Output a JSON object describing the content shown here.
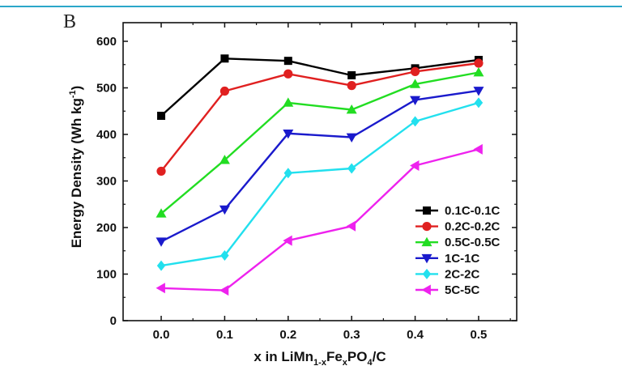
{
  "panel_label": "B",
  "chart_data": {
    "type": "line",
    "title": "",
    "xlabel_parts": {
      "prefix": "x in LiMn",
      "sub1": "1-x",
      "mid1": "Fe",
      "sub2": "x",
      "mid2": "PO",
      "sub3": "4",
      "suffix": "/C"
    },
    "ylabel_parts": {
      "main": "Energy Density  (Wh kg",
      "sup": "-1",
      "end": ")"
    },
    "x": [
      0.0,
      0.1,
      0.2,
      0.3,
      0.4,
      0.5
    ],
    "x_tick_labels": [
      "0.0",
      "0.1",
      "0.2",
      "0.3",
      "0.4",
      "0.5"
    ],
    "y_ticks": [
      0,
      100,
      200,
      300,
      400,
      500,
      600
    ],
    "xlim": [
      -0.06,
      0.56
    ],
    "ylim": [
      0,
      640
    ],
    "series": [
      {
        "name": "0.1C-0.1C",
        "color": "#000000",
        "marker": "square",
        "values": [
          440,
          563,
          558,
          527,
          542,
          560
        ]
      },
      {
        "name": "0.2C-0.2C",
        "color": "#e02020",
        "marker": "circle",
        "values": [
          321,
          493,
          530,
          505,
          535,
          553
        ]
      },
      {
        "name": "0.5C-0.5C",
        "color": "#22dd22",
        "marker": "triangle-up",
        "values": [
          230,
          345,
          468,
          453,
          508,
          533
        ]
      },
      {
        "name": "1C-1C",
        "color": "#1a1acc",
        "marker": "triangle-down",
        "values": [
          170,
          239,
          402,
          394,
          474,
          494
        ]
      },
      {
        "name": "2C-2C",
        "color": "#22e0ee",
        "marker": "diamond",
        "values": [
          118,
          140,
          317,
          327,
          428,
          468
        ]
      },
      {
        "name": "5C-5C",
        "color": "#ee22ee",
        "marker": "triangle-left",
        "values": [
          70,
          65,
          172,
          203,
          333,
          368
        ]
      }
    ],
    "legend_position": "right-center"
  }
}
